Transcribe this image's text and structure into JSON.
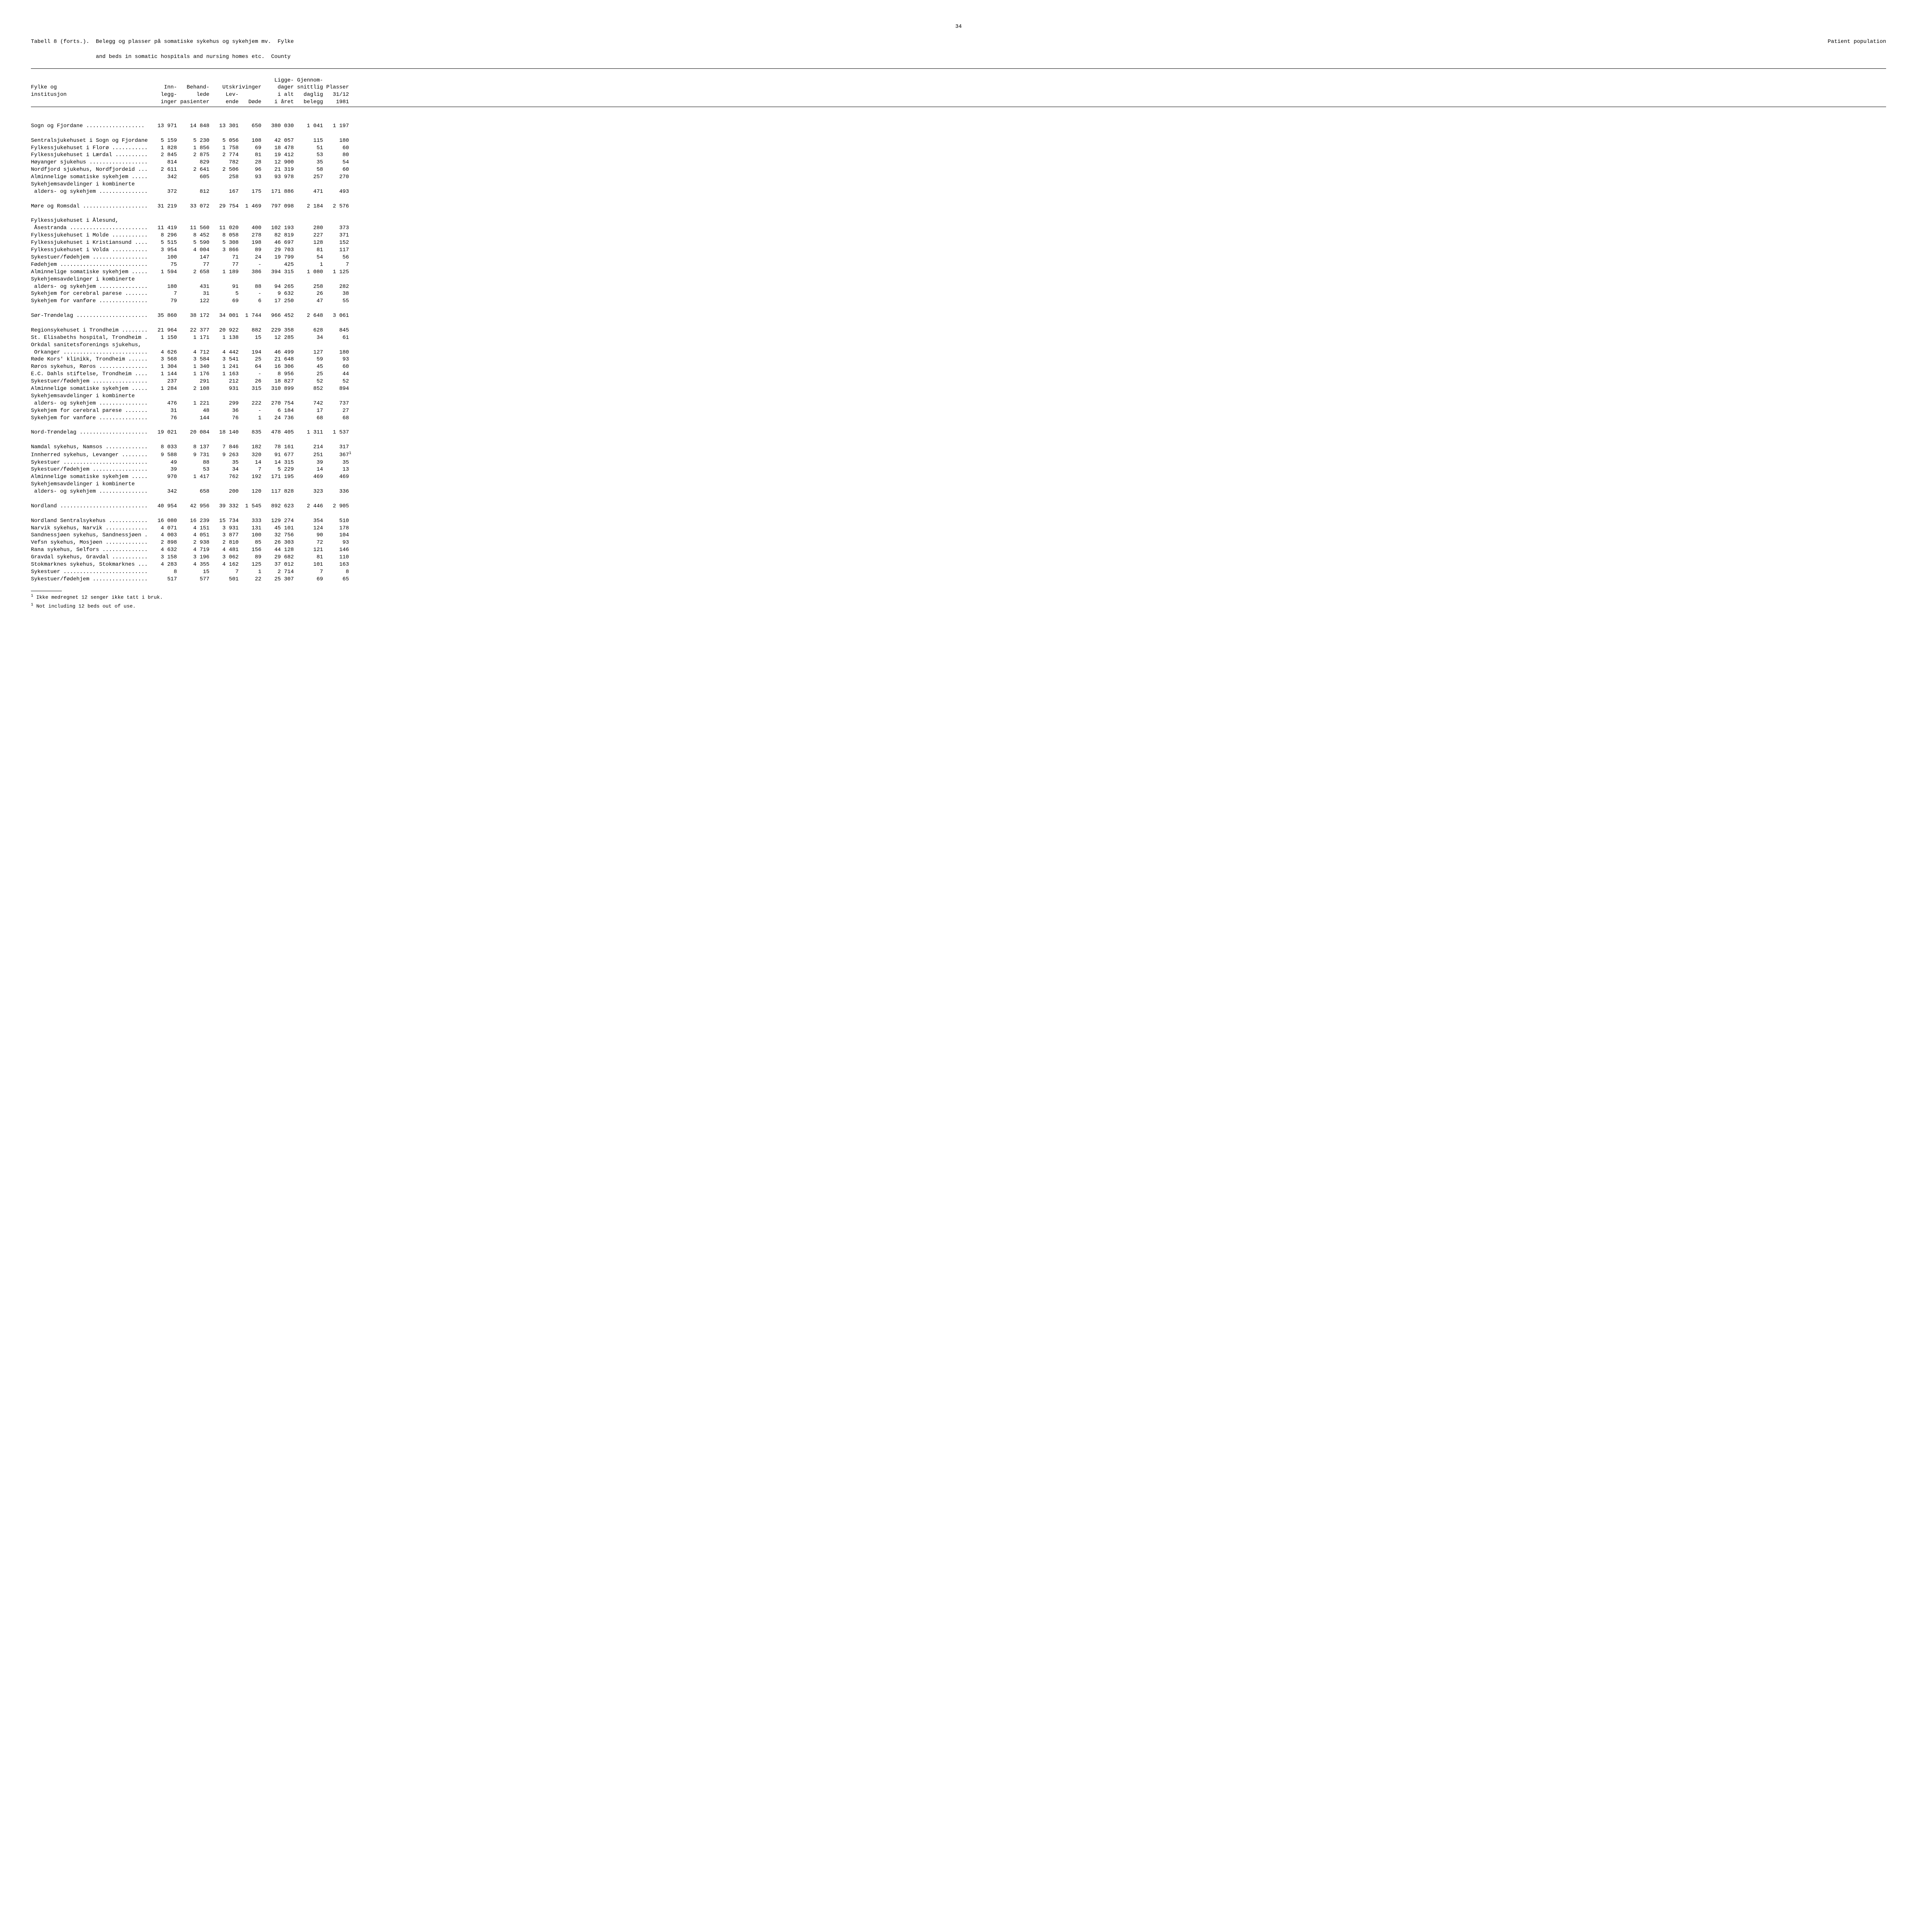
{
  "page_number": "34",
  "table_header_label": "Tabell 8 (forts.).",
  "title_line1": "Belegg og plasser på somatiske sykehus og sykehjem mv.  Fylke",
  "title_line1_right": "Patient population",
  "title_line2": "and beds in somatic hospitals and nursing homes etc.  County",
  "columns_row1": {
    "c1": "",
    "c2": "",
    "c3": "",
    "c4": "",
    "c5": "",
    "c6": "Ligge-",
    "c7": "Gjennom-",
    "c8": ""
  },
  "columns_row2": {
    "c1": "Fylke og",
    "c2": "Inn-",
    "c3": "Behand-",
    "c4_5": "Utskrivinger",
    "c6": "dager",
    "c7": "snittlig",
    "c8": "Plasser"
  },
  "columns_row3": {
    "c1": "institusjon",
    "c2": "legg-",
    "c3": "lede",
    "c4": "Lev-",
    "c5": "",
    "c6": "i alt",
    "c7": "daglig",
    "c8": "31/12"
  },
  "columns_row4": {
    "c1": "",
    "c2": "inger",
    "c3": "pasienter",
    "c4": "ende",
    "c5": "Døde",
    "c6": "i året",
    "c7": "belegg",
    "c8": "1981"
  },
  "sections": [
    {
      "title": "Sogn og Fjordane ..................",
      "vals": [
        "13 971",
        "14 848",
        "13 301",
        "650",
        "380 030",
        "1 041",
        "1 197"
      ],
      "spacer_after": true,
      "rows": [
        {
          "name": "Sentralsjukehuset i Sogn og Fjordane",
          "vals": [
            "5 159",
            "5 230",
            "5 056",
            "108",
            "42 057",
            "115",
            "180"
          ]
        },
        {
          "name": "Fylkessjukehuset i Florø ...........",
          "vals": [
            "1 828",
            "1 856",
            "1 758",
            "69",
            "18 478",
            "51",
            "60"
          ]
        },
        {
          "name": "Fylkessjukehuset i Lærdal ..........",
          "vals": [
            "2 845",
            "2 875",
            "2 774",
            "81",
            "19 412",
            "53",
            "80"
          ]
        },
        {
          "name": "Høyanger sjukehus ..................",
          "vals": [
            "814",
            "829",
            "782",
            "28",
            "12 900",
            "35",
            "54"
          ]
        },
        {
          "name": "Nordfjord sjukehus, Nordfjordeid ...",
          "vals": [
            "2 611",
            "2 641",
            "2 506",
            "96",
            "21 319",
            "58",
            "60"
          ]
        },
        {
          "name": "Alminnelige somatiske sykehjem .....",
          "vals": [
            "342",
            "605",
            "258",
            "93",
            "93 978",
            "257",
            "270"
          ]
        },
        {
          "name": "Sykehjemsavdelinger i kombinerte",
          "vals": [
            "",
            "",
            "",
            "",
            "",
            "",
            ""
          ]
        },
        {
          "name": " alders- og sykehjem ...............",
          "vals": [
            "372",
            "812",
            "167",
            "175",
            "171 886",
            "471",
            "493"
          ]
        }
      ]
    },
    {
      "title": "Møre og Romsdal ....................",
      "vals": [
        "31 219",
        "33 072",
        "29 754",
        "1 469",
        "797 098",
        "2 184",
        "2 576"
      ],
      "spacer_before": true,
      "spacer_after": true,
      "rows": [
        {
          "name": "Fylkessjukehuset i Ålesund,",
          "vals": [
            "",
            "",
            "",
            "",
            "",
            "",
            ""
          ]
        },
        {
          "name": " Åsestranda ........................",
          "vals": [
            "11 419",
            "11 560",
            "11 020",
            "400",
            "102 193",
            "280",
            "373"
          ]
        },
        {
          "name": "Fylkessjukehuset i Molde ...........",
          "vals": [
            "8 296",
            "8 452",
            "8 058",
            "278",
            "82 819",
            "227",
            "371"
          ]
        },
        {
          "name": "Fylkessjukehuset i Kristiansund ....",
          "vals": [
            "5 515",
            "5 590",
            "5 308",
            "198",
            "46 697",
            "128",
            "152"
          ]
        },
        {
          "name": "Fylkessjukehuset i Volda ...........",
          "vals": [
            "3 954",
            "4 004",
            "3 866",
            "89",
            "29 703",
            "81",
            "117"
          ]
        },
        {
          "name": "Sykestuer/fødehjem .................",
          "vals": [
            "100",
            "147",
            "71",
            "24",
            "19 799",
            "54",
            "56"
          ]
        },
        {
          "name": "Fødehjem ...........................",
          "vals": [
            "75",
            "77",
            "77",
            "-",
            "425",
            "1",
            "7"
          ]
        },
        {
          "name": "Alminnelige somatiske sykehjem .....",
          "vals": [
            "1 594",
            "2 658",
            "1 189",
            "386",
            "394 315",
            "1 080",
            "1 125"
          ]
        },
        {
          "name": "Sykehjemsavdelinger i kombinerte",
          "vals": [
            "",
            "",
            "",
            "",
            "",
            "",
            ""
          ]
        },
        {
          "name": " alders- og sykehjem ...............",
          "vals": [
            "180",
            "431",
            "91",
            "88",
            "94 265",
            "258",
            "282"
          ]
        },
        {
          "name": "Sykehjem for cerebral parese .......",
          "vals": [
            "7",
            "31",
            "5",
            "-",
            "9 632",
            "26",
            "38"
          ]
        },
        {
          "name": "Sykehjem for vanføre ...............",
          "vals": [
            "79",
            "122",
            "69",
            "6",
            "17 250",
            "47",
            "55"
          ]
        }
      ]
    },
    {
      "title": "Sør-Trøndelag ......................",
      "vals": [
        "35 860",
        "38 172",
        "34 001",
        "1 744",
        "966 452",
        "2 648",
        "3 061"
      ],
      "spacer_before": true,
      "spacer_after": true,
      "rows": [
        {
          "name": "Regionsykehuset i Trondheim ........",
          "vals": [
            "21 964",
            "22 377",
            "20 922",
            "882",
            "229 358",
            "628",
            "845"
          ]
        },
        {
          "name": "St. Elisabeths hospital, Trondheim .",
          "vals": [
            "1 150",
            "1 171",
            "1 138",
            "15",
            "12 285",
            "34",
            "61"
          ]
        },
        {
          "name": "Orkdal sanitetsforenings sjukehus,",
          "vals": [
            "",
            "",
            "",
            "",
            "",
            "",
            ""
          ]
        },
        {
          "name": " Orkanger ..........................",
          "vals": [
            "4 626",
            "4 712",
            "4 442",
            "194",
            "46 499",
            "127",
            "180"
          ]
        },
        {
          "name": "Røde Kors' klinikk, Trondheim ......",
          "vals": [
            "3 568",
            "3 584",
            "3 541",
            "25",
            "21 648",
            "59",
            "93"
          ]
        },
        {
          "name": "Røros sykehus, Røros ...............",
          "vals": [
            "1 304",
            "1 340",
            "1 241",
            "64",
            "16 306",
            "45",
            "60"
          ]
        },
        {
          "name": "E.C. Dahls stiftelse, Trondheim ....",
          "vals": [
            "1 144",
            "1 176",
            "1 163",
            "-",
            "8 956",
            "25",
            "44"
          ]
        },
        {
          "name": "Sykestuer/fødehjem .................",
          "vals": [
            "237",
            "291",
            "212",
            "26",
            "18 827",
            "52",
            "52"
          ]
        },
        {
          "name": "Alminnelige somatiske sykehjem .....",
          "vals": [
            "1 284",
            "2 108",
            "931",
            "315",
            "310 899",
            "852",
            "894"
          ]
        },
        {
          "name": "Sykehjemsavdelinger i kombinerte",
          "vals": [
            "",
            "",
            "",
            "",
            "",
            "",
            ""
          ]
        },
        {
          "name": " alders- og sykehjem ...............",
          "vals": [
            "476",
            "1 221",
            "299",
            "222",
            "270 754",
            "742",
            "737"
          ]
        },
        {
          "name": "Sykehjem for cerebral parese .......",
          "vals": [
            "31",
            "48",
            "36",
            "-",
            "6 184",
            "17",
            "27"
          ]
        },
        {
          "name": "Sykehjem for vanføre ...............",
          "vals": [
            "76",
            "144",
            "76",
            "1",
            "24 736",
            "68",
            "68"
          ]
        }
      ]
    },
    {
      "title": "Nord-Trøndelag .....................",
      "vals": [
        "19 021",
        "20 084",
        "18 140",
        "835",
        "478 405",
        "1 311",
        "1 537"
      ],
      "spacer_before": true,
      "spacer_after": true,
      "rows": [
        {
          "name": "Namdal sykehus, Namsos .............",
          "vals": [
            "8 033",
            "8 137",
            "7 846",
            "182",
            "78 161",
            "214",
            "317"
          ]
        },
        {
          "name": "Innherred sykehus, Levanger ........",
          "vals": [
            "9 588",
            "9 731",
            "9 263",
            "320",
            "91 677",
            "251",
            "367"
          ],
          "sup": "1"
        },
        {
          "name": "Sykestuer ..........................",
          "vals": [
            "49",
            "88",
            "35",
            "14",
            "14 315",
            "39",
            "35"
          ]
        },
        {
          "name": "Sykestuer/fødehjem .................",
          "vals": [
            "39",
            "53",
            "34",
            "7",
            "5 229",
            "14",
            "13"
          ]
        },
        {
          "name": "Alminnelige somatiske sykehjem .....",
          "vals": [
            "970",
            "1 417",
            "762",
            "192",
            "171 195",
            "469",
            "469"
          ]
        },
        {
          "name": "Sykehjemsavdelinger i kombinerte",
          "vals": [
            "",
            "",
            "",
            "",
            "",
            "",
            ""
          ]
        },
        {
          "name": " alders- og sykehjem ...............",
          "vals": [
            "342",
            "658",
            "200",
            "120",
            "117 828",
            "323",
            "336"
          ]
        }
      ]
    },
    {
      "title": "Nordland ...........................",
      "vals": [
        "40 954",
        "42 956",
        "39 332",
        "1 545",
        "892 623",
        "2 446",
        "2 905"
      ],
      "spacer_before": true,
      "spacer_after": true,
      "rows": [
        {
          "name": "Nordland Sentralsykehus ............",
          "vals": [
            "16 080",
            "16 239",
            "15 734",
            "333",
            "129 274",
            "354",
            "510"
          ]
        },
        {
          "name": "Narvik sykehus, Narvik .............",
          "vals": [
            "4 071",
            "4 151",
            "3 931",
            "131",
            "45 101",
            "124",
            "178"
          ]
        },
        {
          "name": "Sandnessjøen sykehus, Sandnessjøen .",
          "vals": [
            "4 003",
            "4 051",
            "3 877",
            "100",
            "32 756",
            "90",
            "104"
          ]
        },
        {
          "name": "Vefsn sykehus, Mosjøen .............",
          "vals": [
            "2 898",
            "2 938",
            "2 810",
            "85",
            "26 303",
            "72",
            "93"
          ]
        },
        {
          "name": "Rana sykehus, Selfors ..............",
          "vals": [
            "4 632",
            "4 719",
            "4 481",
            "156",
            "44 128",
            "121",
            "146"
          ]
        },
        {
          "name": "Gravdal sykehus, Gravdal ...........",
          "vals": [
            "3 158",
            "3 196",
            "3 062",
            "89",
            "29 682",
            "81",
            "110"
          ]
        },
        {
          "name": "Stokmarknes sykehus, Stokmarknes ...",
          "vals": [
            "4 283",
            "4 355",
            "4 162",
            "125",
            "37 012",
            "101",
            "163"
          ]
        },
        {
          "name": "Sykestuer ..........................",
          "vals": [
            "8",
            "15",
            "7",
            "1",
            "2 714",
            "7",
            "8"
          ]
        },
        {
          "name": "Sykestuer/fødehjem .................",
          "vals": [
            "517",
            "577",
            "501",
            "22",
            "25 307",
            "69",
            "65"
          ]
        }
      ]
    }
  ],
  "footnotes": [
    "Ikke medregnet 12 senger ikke tatt i bruk.",
    "Not including 12 beds out of use."
  ],
  "footnote_marker": "1",
  "col_widths": {
    "name": 38,
    "c2": 7,
    "c3": 10,
    "c4": 9,
    "c5": 7,
    "c6": 10,
    "c7": 9,
    "c8": 8
  }
}
